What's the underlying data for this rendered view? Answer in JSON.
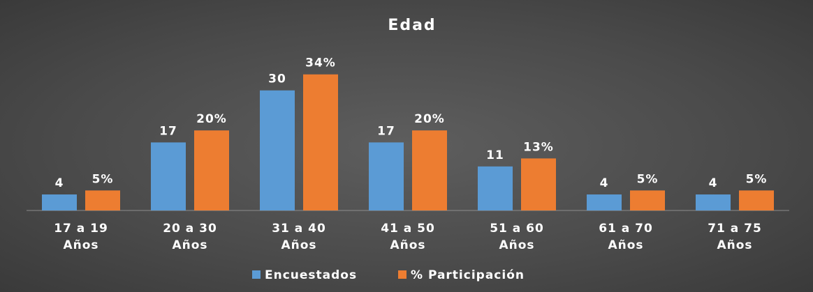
{
  "chart_data": {
    "type": "bar",
    "title": "Edad",
    "categories": [
      "17 a 19 Años",
      "20 a 30 Años",
      "31 a 40 Años",
      "41 a 50 Años",
      "51 a 60 Años",
      "61 a 70 Años",
      "71 a 75 Años"
    ],
    "series": [
      {
        "name": "Encuestados",
        "color": "#5b9bd5",
        "values": [
          4,
          17,
          30,
          17,
          11,
          4,
          4
        ]
      },
      {
        "name": "% Participación",
        "color": "#ed7d31",
        "values": [
          5,
          20,
          34,
          20,
          13,
          5,
          5
        ],
        "value_labels": [
          "5%",
          "20%",
          "34%",
          "20%",
          "13%",
          "5%",
          "5%"
        ]
      }
    ],
    "ylim": [
      0,
      35
    ],
    "legend": "bottom"
  }
}
